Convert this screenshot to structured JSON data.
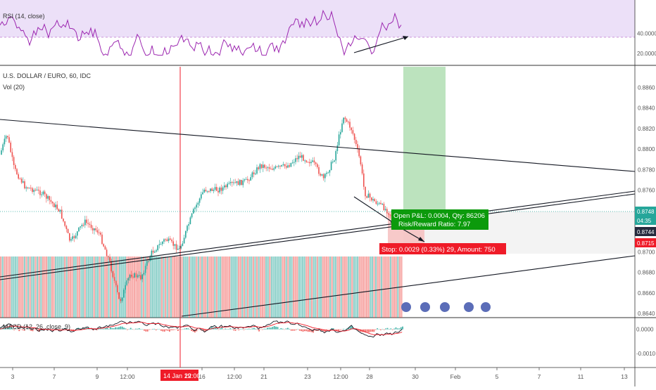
{
  "chart_data": {
    "type": "candlestick",
    "symbol_title": "U.S. DOLLAR / EURO, 60, IDC",
    "volume_label": "Vol (20)",
    "rsi_label": "RSI (14, close)",
    "macd_label": "MACD (12, 26, close, 9)",
    "x_ticks": [
      "3",
      "7",
      "9",
      "12:00",
      "16",
      "12:00",
      "21",
      "23",
      "12:00",
      "28",
      "30",
      "Feb",
      "5",
      "7",
      "11",
      "13"
    ],
    "highlight_date_label": "14 Jan 19",
    "highlight_time_label": "22:00",
    "price_axis": {
      "ticks": [
        "0.8860",
        "0.8840",
        "0.8820",
        "0.8800",
        "0.8780",
        "0.8760",
        "0.8700",
        "0.8680",
        "0.8660",
        "0.8640"
      ],
      "ylim": [
        0.8636,
        0.888
      ]
    },
    "price_tags": [
      {
        "label": "0.8748",
        "color": "#26a69a"
      },
      {
        "label": "04:35",
        "color": "#26a69a"
      },
      {
        "label": "0.8744",
        "color": "#262b3e"
      },
      {
        "label": "0.8715",
        "color": "#ef1b28"
      }
    ],
    "rsi_axis": {
      "ticks": [
        "40.0000",
        "20.0000"
      ],
      "ylim": [
        10,
        72
      ]
    },
    "macd_axis": {
      "ticks": [
        "0.0000",
        "-0.0010"
      ],
      "ylim": [
        -0.0015,
        0.0004
      ]
    },
    "position": {
      "pnl_line": "Open P&L: 0.0004, Qty: 86206",
      "ratio_line": "Risk/Reward Ratio: 7.97",
      "stop_line": "Stop: 0.0029 (0.33%) 29, Amount: 750"
    },
    "colors": {
      "up": "#26a69a",
      "down": "#ef5350",
      "rsi": "#9c27b0",
      "rsi_band": "#ece0f8",
      "profit_zone": "#a6d9a8",
      "stop_zone": "#f5bcbc",
      "pnl_box": "#0c9a0c",
      "stop_box": "#ef1b28"
    }
  }
}
